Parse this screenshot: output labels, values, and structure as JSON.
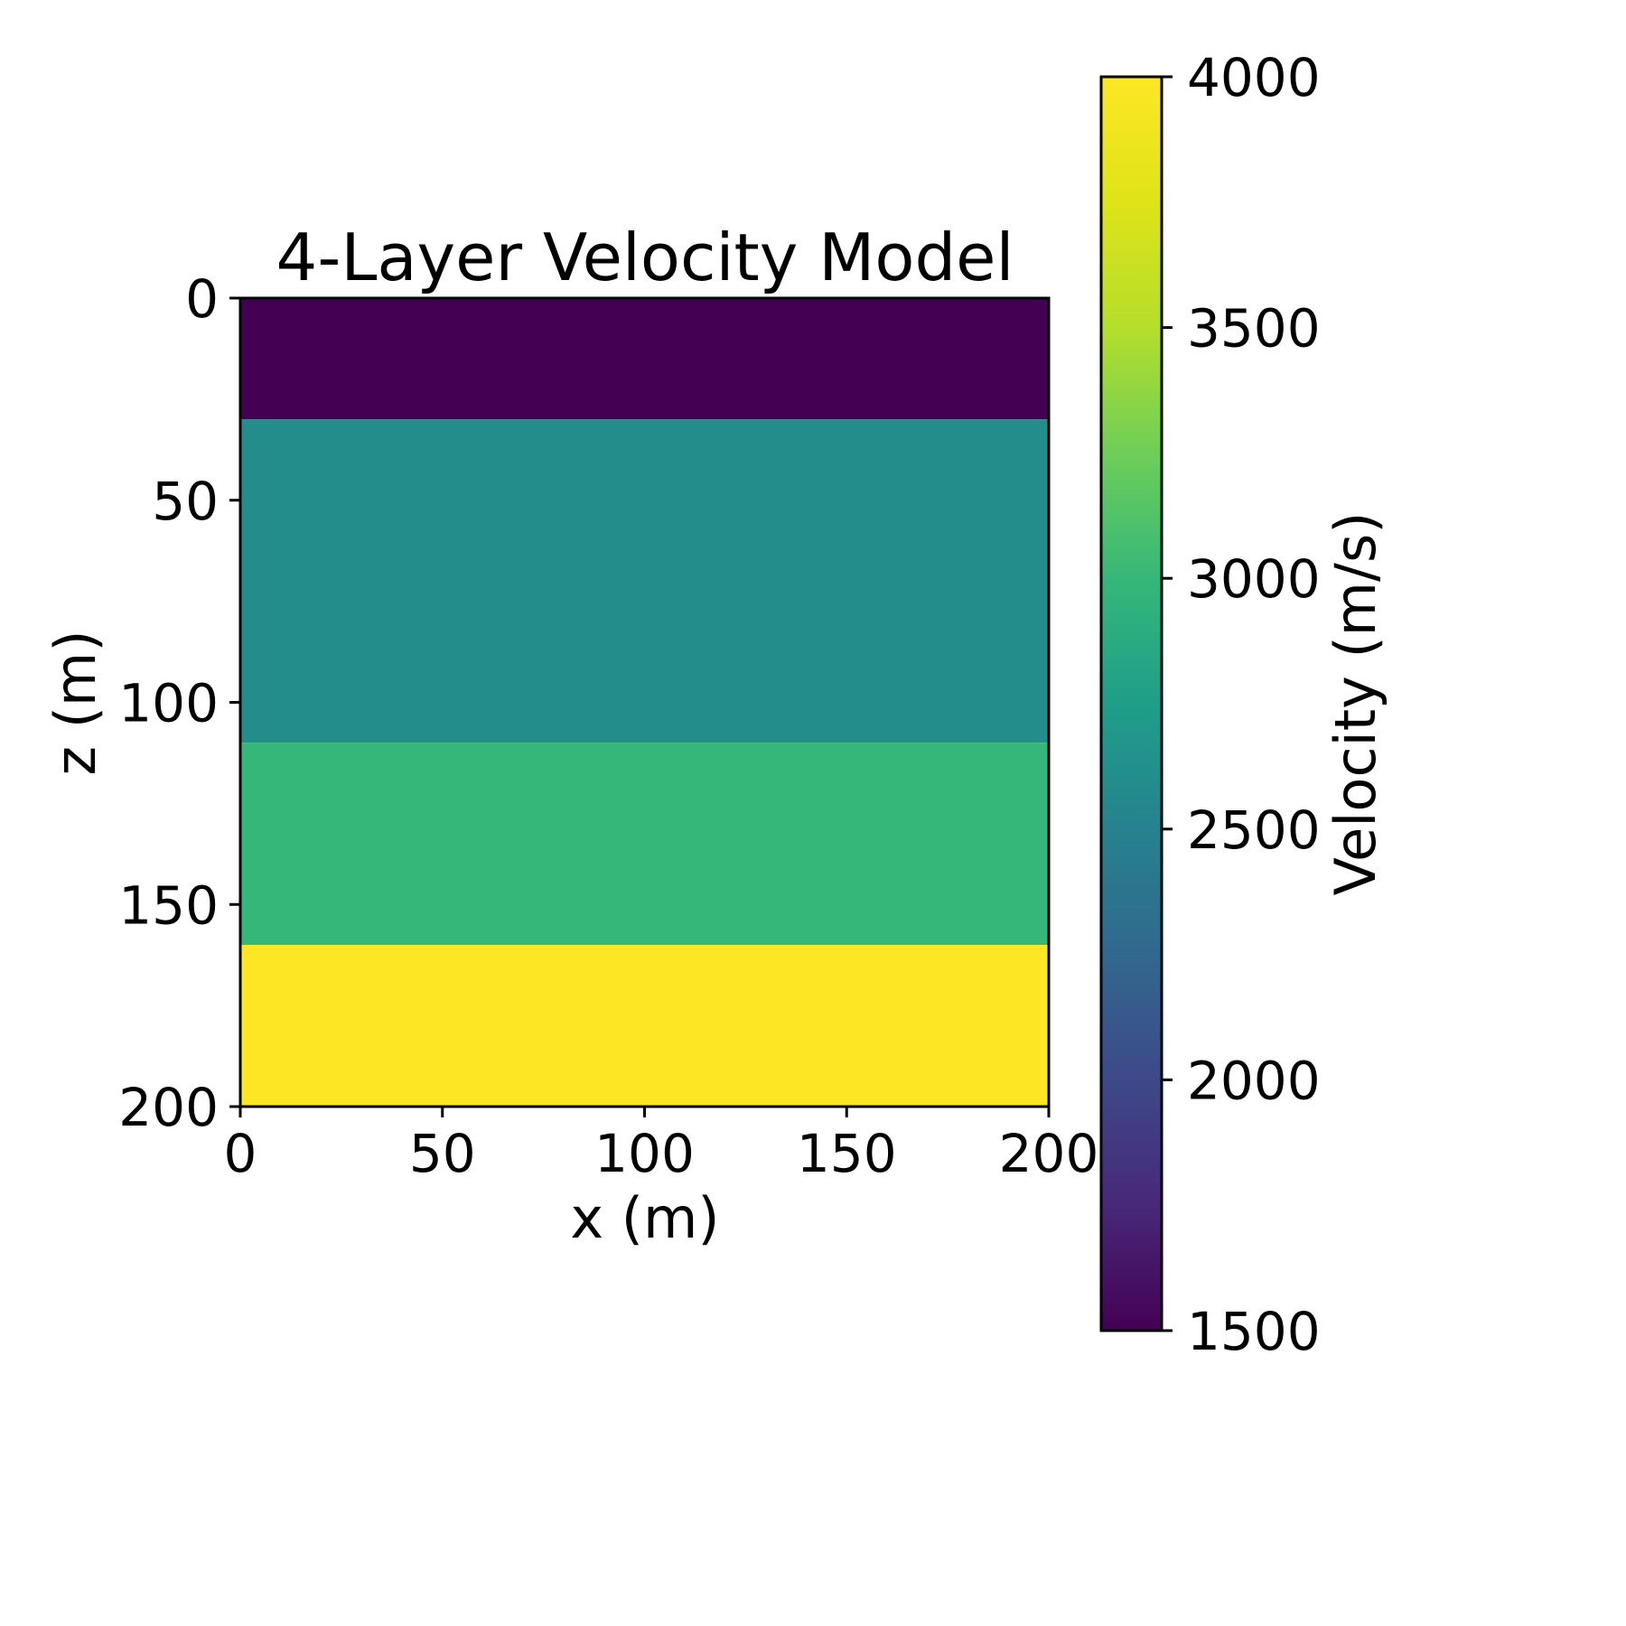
{
  "chart_data": {
    "type": "heatmap",
    "title": "4-Layer Velocity Model",
    "xlabel": "x (m)",
    "ylabel": "z (m)",
    "xlim": [
      0,
      200
    ],
    "ylim": [
      0,
      200
    ],
    "y_inverted": true,
    "x_ticks": [
      "0",
      "50",
      "100",
      "150",
      "200"
    ],
    "y_ticks": [
      "0",
      "50",
      "100",
      "150",
      "200"
    ],
    "layers": [
      {
        "z_top": 0,
        "z_bottom": 30,
        "velocity": 1500
      },
      {
        "z_top": 30,
        "z_bottom": 110,
        "velocity": 2600
      },
      {
        "z_top": 110,
        "z_bottom": 160,
        "velocity": 3000
      },
      {
        "z_top": 160,
        "z_bottom": 200,
        "velocity": 4000
      }
    ],
    "colorbar": {
      "label": "Velocity (m/s)",
      "colormap": "viridis",
      "range": [
        1500,
        4000
      ],
      "ticks": [
        "1500",
        "2000",
        "2500",
        "3000",
        "3500",
        "4000"
      ]
    },
    "grid": false
  }
}
